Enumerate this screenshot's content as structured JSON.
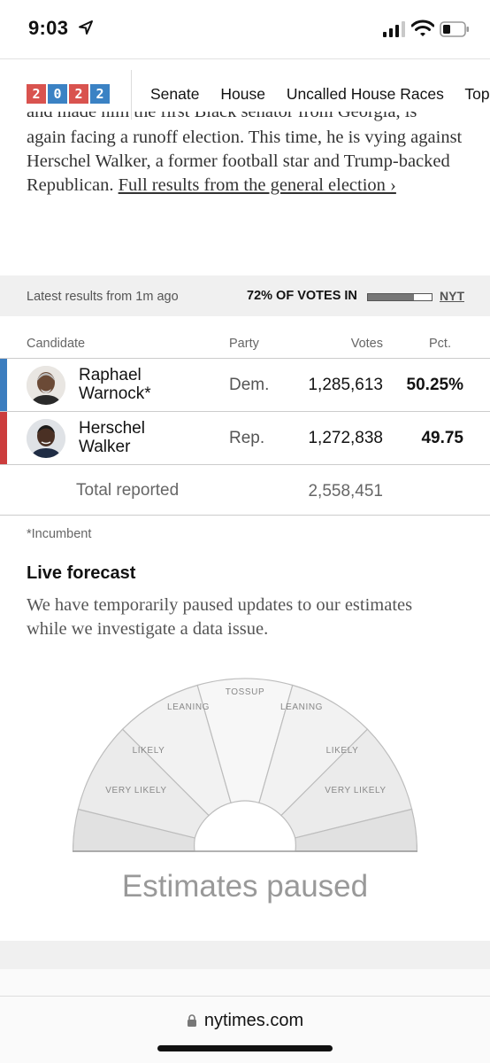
{
  "status_bar": {
    "time": "9:03"
  },
  "nav": {
    "logo_digits": [
      "2",
      "0",
      "2",
      "2"
    ],
    "links": [
      "Senate",
      "House",
      "Uncalled House Races",
      "Top"
    ]
  },
  "intro": {
    "cut_line": "and made him the first Black senator from Georgia, is",
    "text": "again facing a runoff election. This time, he is vying against Herschel Walker, a former football star and Trump-backed Republican. ",
    "link": "Full results from the general election ›"
  },
  "results_bar": {
    "latest": "Latest results from 1m ago",
    "votes_in": "72% OF VOTES IN",
    "progress": 0.72,
    "source": "NYT"
  },
  "table": {
    "headers": {
      "candidate": "Candidate",
      "party": "Party",
      "votes": "Votes",
      "pct": "Pct."
    },
    "rows": [
      {
        "first": "Raphael",
        "last": "Warnock*",
        "party": "Dem.",
        "votes": "1,285,613",
        "pct": "50.25%",
        "color": "#3b7dbf"
      },
      {
        "first": "Herschel",
        "last": "Walker",
        "party": "Rep.",
        "votes": "1,272,838",
        "pct": "49.75",
        "color": "#cc3d3d"
      }
    ],
    "total_label": "Total reported",
    "total_votes": "2,558,451"
  },
  "incumbent_note": "*Incumbent",
  "forecast": {
    "title": "Live forecast",
    "note": "We have temporarily paused updates to our estimates while we investigate a data issue.",
    "labels": {
      "tossup": "TOSSUP",
      "leaning_left": "LEANING",
      "leaning_right": "LEANING",
      "likely_left": "LIKELY",
      "likely_right": "LIKELY",
      "very_likely_left": "VERY LIKELY",
      "very_likely_right": "VERY LIKELY"
    },
    "paused": "Estimates paused"
  },
  "browser": {
    "url": "nytimes.com"
  }
}
